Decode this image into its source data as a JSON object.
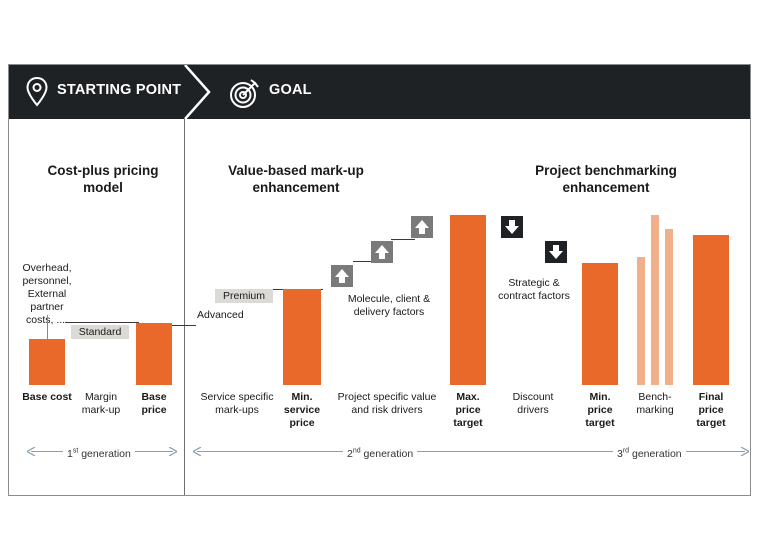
{
  "header": {
    "starting_point": "STARTING POINT",
    "goal": "GOAL",
    "icons": [
      "location-pin-icon",
      "target-icon"
    ]
  },
  "sections": {
    "cost_plus": "Cost-plus pricing model",
    "value_based": "Value-based mark-up enhancement",
    "benchmarking": "Project benchmarking enhancement"
  },
  "annotations": {
    "overhead": "Overhead, personnel, External partner costs, ....",
    "standard": "Standard",
    "premium": "Premium",
    "advanced": "Advanced",
    "molecule": "Molecule, client & delivery factors",
    "strategic": "Strategic & contract factors"
  },
  "chart_data": {
    "type": "waterfall",
    "title": "",
    "categories": [
      {
        "label": "Base cost",
        "bold": true
      },
      {
        "label": "Margin mark-up",
        "bold": false
      },
      {
        "label": "Base price",
        "bold": true
      },
      {
        "label": "Service specific mark-ups",
        "bold": false
      },
      {
        "label": "Min. service price",
        "bold": true
      },
      {
        "label": "Project specific value and risk drivers",
        "bold": false
      },
      {
        "label": "Max. price target",
        "bold": true
      },
      {
        "label": "Discount drivers",
        "bold": false
      },
      {
        "label": "Min. price target",
        "bold": true
      },
      {
        "label": "Bench-marking",
        "bold": false
      },
      {
        "label": "Final price target",
        "bold": true
      }
    ],
    "generations": [
      "1st generation",
      "2nd generation",
      "3rd generation"
    ],
    "colors": {
      "bar": "#e8692a",
      "bar_light": "#f1b08a",
      "header": "#1f2224",
      "tag": "#dcdad6"
    }
  }
}
